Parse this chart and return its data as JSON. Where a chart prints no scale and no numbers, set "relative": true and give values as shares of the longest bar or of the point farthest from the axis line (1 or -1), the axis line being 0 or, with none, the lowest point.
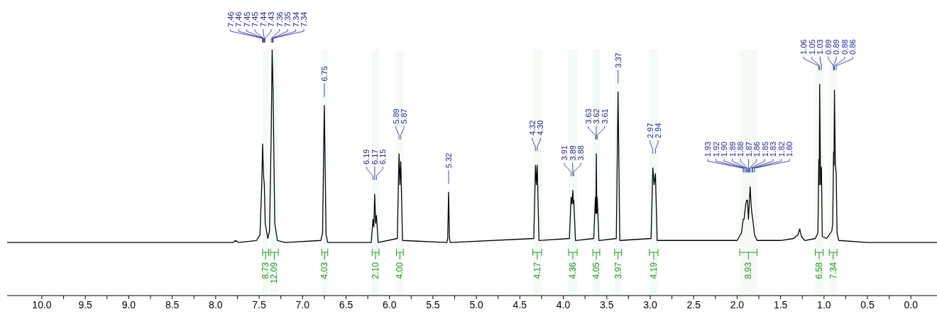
{
  "chart_data": {
    "type": "line",
    "relative": true,
    "xlim": [
      10.4,
      -0.3
    ],
    "xticks": [
      {
        "value": 10,
        "label": "10.0"
      },
      {
        "value": 9.75,
        "label": null
      },
      {
        "value": 9.5,
        "label": "9.5"
      },
      {
        "value": 9.25,
        "label": null
      },
      {
        "value": 9,
        "label": "9.0"
      },
      {
        "value": 8.75,
        "label": null
      },
      {
        "value": 8.5,
        "label": "8.5"
      },
      {
        "value": 8.25,
        "label": null
      },
      {
        "value": 8,
        "label": "8.0"
      },
      {
        "value": 7.75,
        "label": null
      },
      {
        "value": 7.5,
        "label": "7.5"
      },
      {
        "value": 7.25,
        "label": null
      },
      {
        "value": 7,
        "label": "7.0"
      },
      {
        "value": 6.75,
        "label": null
      },
      {
        "value": 6.5,
        "label": "6.5"
      },
      {
        "value": 6.25,
        "label": null
      },
      {
        "value": 6,
        "label": "6.0"
      },
      {
        "value": 5.75,
        "label": null
      },
      {
        "value": 5.5,
        "label": "5.5"
      },
      {
        "value": 5.25,
        "label": null
      },
      {
        "value": 5,
        "label": "5.0"
      },
      {
        "value": 4.75,
        "label": null
      },
      {
        "value": 4.5,
        "label": "4.5"
      },
      {
        "value": 4.25,
        "label": null
      },
      {
        "value": 4,
        "label": "4.0"
      },
      {
        "value": 3.75,
        "label": null
      },
      {
        "value": 3.5,
        "label": "3.5"
      },
      {
        "value": 3.25,
        "label": null
      },
      {
        "value": 3,
        "label": "3.0"
      },
      {
        "value": 2.75,
        "label": null
      },
      {
        "value": 2.5,
        "label": "2.5"
      },
      {
        "value": 2.25,
        "label": null
      },
      {
        "value": 2,
        "label": "2.0"
      },
      {
        "value": 1.75,
        "label": null
      },
      {
        "value": 1.5,
        "label": "1.5"
      },
      {
        "value": 1.25,
        "label": null
      },
      {
        "value": 1,
        "label": "1.0"
      },
      {
        "value": 0.75,
        "label": null
      },
      {
        "value": 0.5,
        "label": "0.5"
      },
      {
        "value": 0.25,
        "label": null
      },
      {
        "value": 0,
        "label": "0.0"
      }
    ],
    "series": [
      {
        "color": "#000000",
        "x": [
          10.4,
          7.8,
          7.77,
          7.74,
          7.53,
          7.49,
          7.47,
          7.46,
          7.45,
          7.44,
          7.43,
          7.4,
          7.38,
          7.36,
          7.35,
          7.34,
          7.32,
          7.29,
          7.2,
          6.79,
          6.77,
          6.75,
          6.73,
          6.71,
          6.21,
          6.19,
          6.18,
          6.17,
          6.16,
          6.15,
          6.13,
          5.91,
          5.89,
          5.88,
          5.87,
          5.85,
          5.34,
          5.33,
          5.32,
          5.31,
          5.3,
          4.34,
          4.32,
          4.31,
          4.3,
          4.28,
          3.93,
          3.91,
          3.9,
          3.89,
          3.885,
          3.88,
          3.86,
          3.65,
          3.63,
          3.625,
          3.62,
          3.615,
          3.61,
          3.59,
          3.39,
          3.37,
          3.35,
          2.99,
          2.97,
          2.955,
          2.94,
          2.92,
          2.0,
          1.95,
          1.93,
          1.92,
          1.9,
          1.89,
          1.88,
          1.87,
          1.86,
          1.85,
          1.84,
          1.83,
          1.82,
          1.8,
          1.77,
          1.5,
          1.35,
          1.3,
          1.28,
          1.26,
          1.22,
          1.1,
          1.07,
          1.06,
          1.055,
          1.05,
          1.04,
          1.03,
          1.02,
          0.97,
          0.94,
          0.91,
          0.9,
          0.89,
          0.885,
          0.88,
          0.87,
          0.86,
          0.85,
          0.83,
          0.5,
          -0.3
        ],
        "values": [
          0.216,
          0.216,
          0.224,
          0.216,
          0.224,
          0.247,
          0.451,
          0.616,
          0.49,
          0.451,
          0.294,
          0.232,
          0.263,
          0.686,
          1,
          0.843,
          0.294,
          0.224,
          0.216,
          0.224,
          0.255,
          0.773,
          0.247,
          0.216,
          0.216,
          0.31,
          0.279,
          0.412,
          0.294,
          0.326,
          0.216,
          0.232,
          0.577,
          0.451,
          0.545,
          0.224,
          0.216,
          0.232,
          0.42,
          0.232,
          0.216,
          0.232,
          0.53,
          0.451,
          0.53,
          0.224,
          0.232,
          0.4,
          0.373,
          0.428,
          0.373,
          0.388,
          0.224,
          0.232,
          0.4,
          0.334,
          0.577,
          0.334,
          0.4,
          0.224,
          0.232,
          0.828,
          0.224,
          0.232,
          0.519,
          0.451,
          0.496,
          0.224,
          0.224,
          0.255,
          0.31,
          0.31,
          0.373,
          0.388,
          0.388,
          0.31,
          0.373,
          0.443,
          0.373,
          0.334,
          0.31,
          0.247,
          0.224,
          0.224,
          0.232,
          0.247,
          0.271,
          0.24,
          0.224,
          0.232,
          0.255,
          0.553,
          0.451,
          0.859,
          0.451,
          0.522,
          0.24,
          0.232,
          0.247,
          0.263,
          0.294,
          0.584,
          0.53,
          0.835,
          0.53,
          0.498,
          0.255,
          0.224,
          0.216,
          0.216
        ]
      }
    ],
    "annotations": [
      {
        "text": "7.46",
        "x": 7.46
      },
      {
        "text": "7.46",
        "x": 7.46
      },
      {
        "text": "7.45",
        "x": 7.45
      },
      {
        "text": "7.45",
        "x": 7.45
      },
      {
        "text": "7.44",
        "x": 7.44
      },
      {
        "text": "7.43",
        "x": 7.43
      },
      {
        "text": "7.36",
        "x": 7.36
      },
      {
        "text": "7.35",
        "x": 7.35
      },
      {
        "text": "7.34",
        "x": 7.34
      },
      {
        "text": "7.34",
        "x": 7.34
      },
      {
        "text": "6.75",
        "x": 6.75
      },
      {
        "text": "6.19",
        "x": 6.19
      },
      {
        "text": "6.17",
        "x": 6.17
      },
      {
        "text": "6.15",
        "x": 6.15
      },
      {
        "text": "5.89",
        "x": 5.89
      },
      {
        "text": "5.87",
        "x": 5.87
      },
      {
        "text": "5.32",
        "x": 5.32
      },
      {
        "text": "4.32",
        "x": 4.32
      },
      {
        "text": "4.30",
        "x": 4.3
      },
      {
        "text": "3.91",
        "x": 3.91
      },
      {
        "text": "3.89",
        "x": 3.89
      },
      {
        "text": "3.88",
        "x": 3.88
      },
      {
        "text": "3.63",
        "x": 3.63
      },
      {
        "text": "3.62",
        "x": 3.62
      },
      {
        "text": "3.61",
        "x": 3.61
      },
      {
        "text": "3.37",
        "x": 3.37
      },
      {
        "text": "2.97",
        "x": 2.97
      },
      {
        "text": "2.94",
        "x": 2.94
      },
      {
        "text": "1.93",
        "x": 1.93
      },
      {
        "text": "1.92",
        "x": 1.92
      },
      {
        "text": "1.90",
        "x": 1.9
      },
      {
        "text": "1.89",
        "x": 1.89
      },
      {
        "text": "1.88",
        "x": 1.88
      },
      {
        "text": "1.87",
        "x": 1.87
      },
      {
        "text": "1.86",
        "x": 1.86
      },
      {
        "text": "1.85",
        "x": 1.85
      },
      {
        "text": "1.83",
        "x": 1.83
      },
      {
        "text": "1.82",
        "x": 1.82
      },
      {
        "text": "1.80",
        "x": 1.8
      },
      {
        "text": "1.06",
        "x": 1.06
      },
      {
        "text": "1.05",
        "x": 1.05
      },
      {
        "text": "1.03",
        "x": 1.03
      },
      {
        "text": "0.89",
        "x": 0.89
      },
      {
        "text": "0.89",
        "x": 0.89
      },
      {
        "text": "0.88",
        "x": 0.88
      },
      {
        "text": "0.86",
        "x": 0.86
      }
    ],
    "bands": [
      {
        "axis": "x",
        "from": 7.46,
        "to": 7.39,
        "label": "8.73",
        "color": "#229922"
      },
      {
        "axis": "x",
        "from": 7.37,
        "to": 7.28,
        "label": "12.09",
        "color": "#229922"
      },
      {
        "axis": "x",
        "from": 6.78,
        "to": 6.71,
        "label": "4.03",
        "color": "#229922"
      },
      {
        "axis": "x",
        "from": 6.2,
        "to": 6.12,
        "label": "2.10",
        "color": "#229922"
      },
      {
        "axis": "x",
        "from": 5.92,
        "to": 5.84,
        "label": "4.00",
        "color": "#229922"
      },
      {
        "axis": "x",
        "from": 4.35,
        "to": 4.25,
        "label": "4.17",
        "color": "#229922"
      },
      {
        "axis": "x",
        "from": 3.94,
        "to": 3.84,
        "label": "4.36",
        "color": "#229922"
      },
      {
        "axis": "x",
        "from": 3.66,
        "to": 3.58,
        "label": "4.05",
        "color": "#229922"
      },
      {
        "axis": "x",
        "from": 3.41,
        "to": 3.33,
        "label": "3.97",
        "color": "#229922"
      },
      {
        "axis": "x",
        "from": 3.01,
        "to": 2.91,
        "label": "4.19",
        "color": "#229922"
      },
      {
        "axis": "x",
        "from": 1.97,
        "to": 1.77,
        "label": "8.93",
        "color": "#229922"
      },
      {
        "axis": "x",
        "from": 1.1,
        "to": 1.01,
        "label": "6.58",
        "color": "#229922"
      },
      {
        "axis": "x",
        "from": 0.94,
        "to": 0.85,
        "label": "7.34",
        "color": "#229922"
      }
    ]
  }
}
